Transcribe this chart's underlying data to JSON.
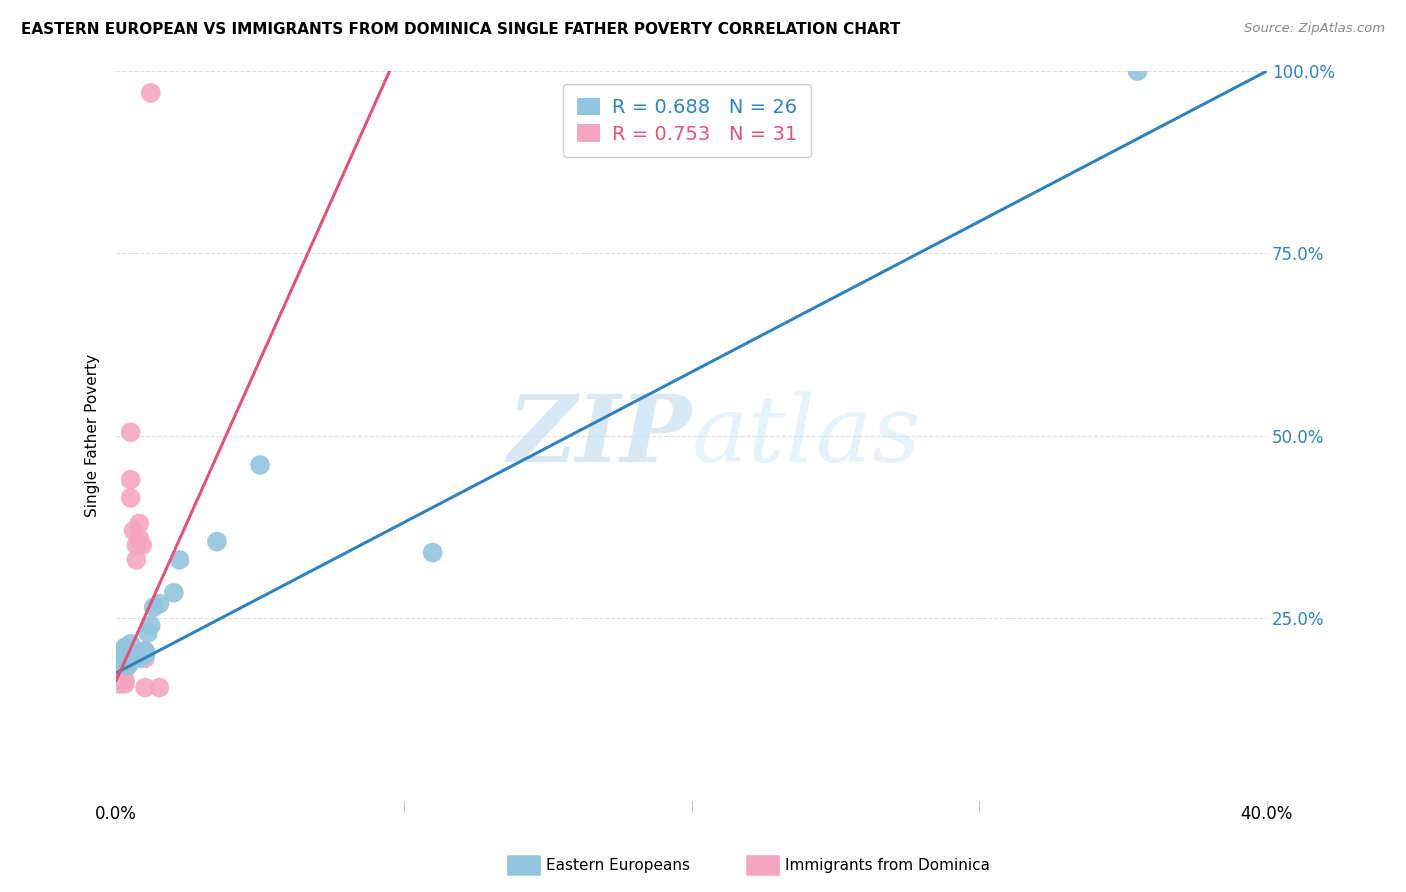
{
  "title": "EASTERN EUROPEAN VS IMMIGRANTS FROM DOMINICA SINGLE FATHER POVERTY CORRELATION CHART",
  "source": "Source: ZipAtlas.com",
  "ylabel": "Single Father Poverty",
  "xlim": [
    0,
    0.4
  ],
  "ylim": [
    0,
    1.0
  ],
  "blue_color": "#92c5de",
  "blue_line_color": "#3182bd",
  "pink_color": "#f4a6c0",
  "pink_line_color": "#e0547a",
  "legend_blue_label": "Eastern Europeans",
  "legend_pink_label": "Immigrants from Dominica",
  "R_blue": 0.688,
  "N_blue": 26,
  "R_pink": 0.753,
  "N_pink": 31,
  "watermark_zip": "ZIP",
  "watermark_atlas": "atlas",
  "blue_points_x": [
    0.001,
    0.001,
    0.002,
    0.002,
    0.003,
    0.003,
    0.004,
    0.004,
    0.005,
    0.005,
    0.006,
    0.007,
    0.008,
    0.009,
    0.01,
    0.01,
    0.011,
    0.012,
    0.013,
    0.015,
    0.02,
    0.022,
    0.035,
    0.05,
    0.11,
    0.355
  ],
  "blue_points_y": [
    0.195,
    0.2,
    0.19,
    0.205,
    0.2,
    0.21,
    0.195,
    0.185,
    0.2,
    0.215,
    0.195,
    0.2,
    0.195,
    0.2,
    0.2,
    0.205,
    0.23,
    0.24,
    0.265,
    0.27,
    0.285,
    0.33,
    0.355,
    0.46,
    0.34,
    1.0
  ],
  "pink_points_x": [
    0.0,
    0.0,
    0.0,
    0.001,
    0.001,
    0.001,
    0.001,
    0.001,
    0.002,
    0.002,
    0.002,
    0.003,
    0.003,
    0.003,
    0.004,
    0.004,
    0.005,
    0.005,
    0.005,
    0.005,
    0.006,
    0.007,
    0.007,
    0.008,
    0.008,
    0.009,
    0.01,
    0.01,
    0.01,
    0.012,
    0.015
  ],
  "pink_points_y": [
    0.175,
    0.185,
    0.17,
    0.195,
    0.175,
    0.165,
    0.16,
    0.17,
    0.195,
    0.185,
    0.17,
    0.165,
    0.18,
    0.16,
    0.2,
    0.185,
    0.195,
    0.415,
    0.44,
    0.505,
    0.37,
    0.35,
    0.33,
    0.38,
    0.36,
    0.35,
    0.205,
    0.195,
    0.155,
    0.97,
    0.155
  ],
  "blue_line_x": [
    0.0,
    0.4
  ],
  "blue_line_y": [
    0.175,
    1.0
  ],
  "pink_line_x": [
    0.0,
    0.095
  ],
  "pink_line_y": [
    0.165,
    1.0
  ],
  "grid_color": "#dddddd",
  "ytick_positions": [
    0.0,
    0.25,
    0.5,
    0.75,
    1.0
  ],
  "ytick_labels_right": [
    "",
    "25.0%",
    "50.0%",
    "75.0%",
    "100.0%"
  ],
  "xtick_positions": [
    0.0,
    0.1,
    0.2,
    0.3,
    0.4
  ],
  "xtick_labels": [
    "0.0%",
    "",
    "",
    "",
    "40.0%"
  ]
}
